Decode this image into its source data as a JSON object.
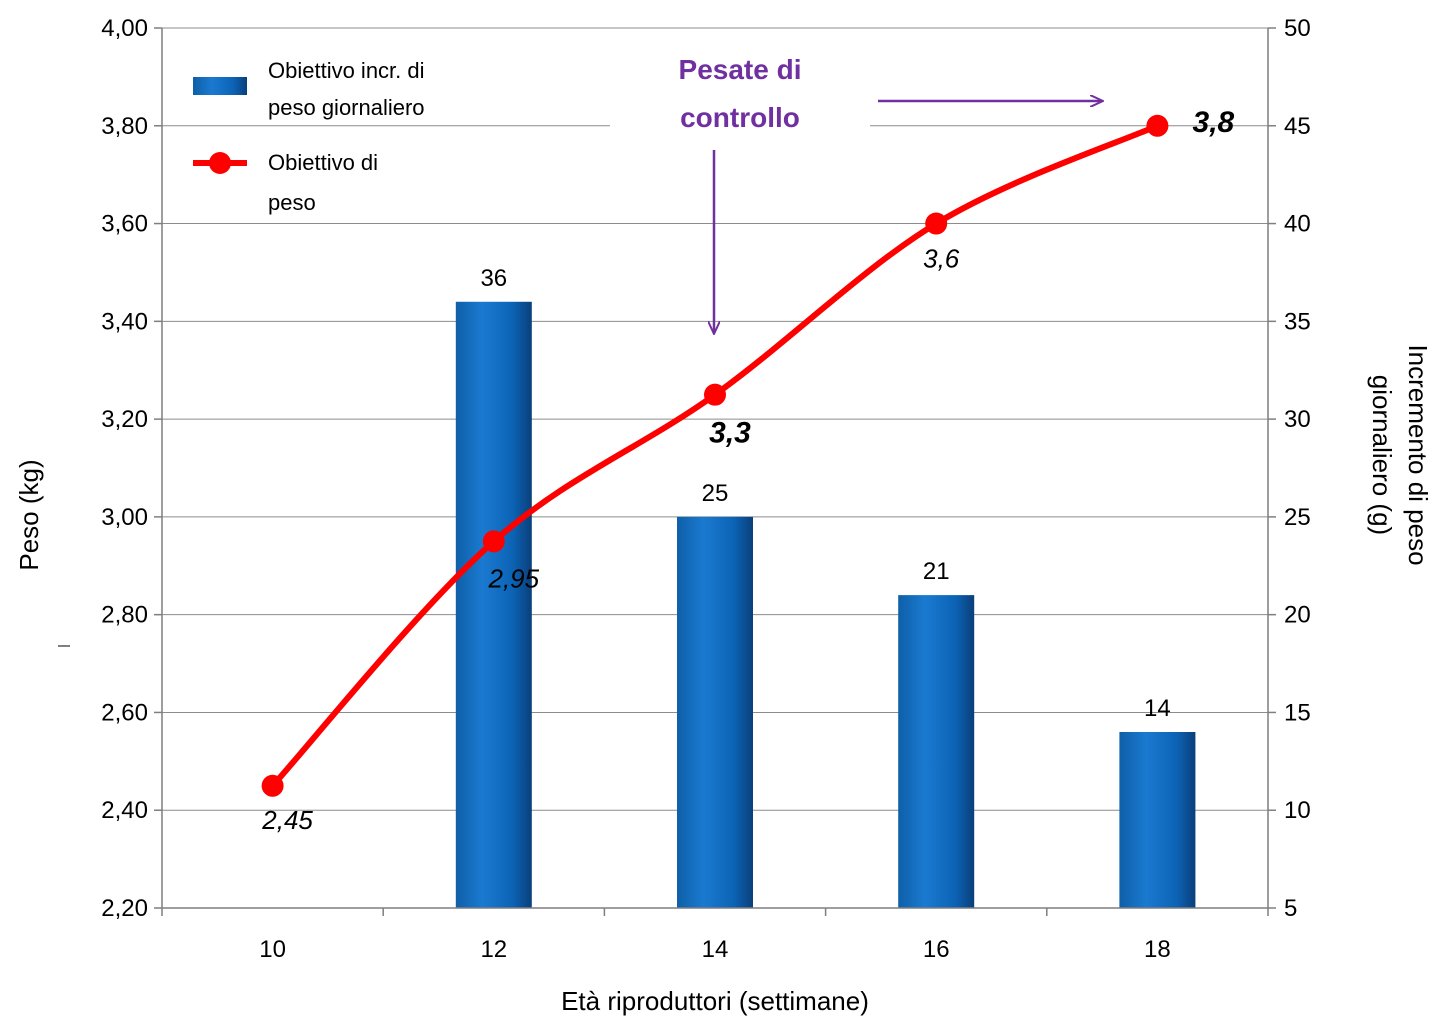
{
  "chart_data": {
    "type": "bar",
    "x_title": "Età riproduttori (settimane)",
    "categories": [
      "10",
      "12",
      "14",
      "16",
      "18"
    ],
    "left_axis": {
      "title": "Peso (kg)",
      "range": [
        2.2,
        4.0
      ],
      "ticks": [
        "2,20",
        "2,40",
        "2,60",
        "2,80",
        "3,00",
        "3,20",
        "3,40",
        "3,60",
        "3,80",
        "4,00"
      ]
    },
    "right_axis": {
      "title_line1": "Incremento di peso",
      "title_line2": "giornaliero (g)",
      "range": [
        5,
        50
      ],
      "ticks": [
        "5",
        "10",
        "15",
        "20",
        "25",
        "30",
        "35",
        "40",
        "45",
        "50"
      ]
    },
    "series": [
      {
        "name_line1": "Obiettivo incr. di",
        "name_line2": "peso giornaliero",
        "type": "bar",
        "axis": "right",
        "color": "#0070c0",
        "values": [
          null,
          36,
          25,
          21,
          14
        ],
        "labels": [
          "",
          "36",
          "25",
          "21",
          "14"
        ]
      },
      {
        "name_line1": "Obiettivo di",
        "name_line2": "peso",
        "type": "line",
        "axis": "left",
        "color": "#ff0000",
        "values": [
          2.45,
          2.95,
          3.25,
          3.6,
          3.8
        ],
        "labels": [
          "2,45",
          "2,95",
          "3,3",
          "3,6",
          "3,8"
        ],
        "bold_labels": [
          false,
          false,
          true,
          false,
          true
        ]
      }
    ],
    "annotation": {
      "line1": "Pesate di",
      "line2": "controllo",
      "color": "#7030a0"
    },
    "grid": true,
    "legend_position": "top-left"
  }
}
